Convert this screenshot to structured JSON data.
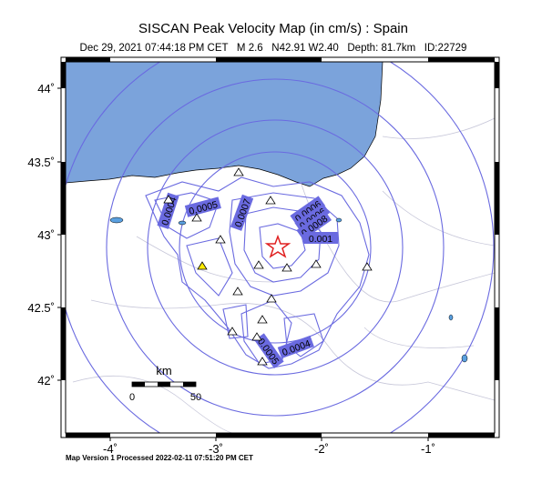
{
  "header": {
    "title": "SISCAN Peak Velocity Map (in cm/s) : Spain",
    "subtitle": "Dec 29, 2021 07:44:18 PM CET   M 2.6   N42.91 W2.40   Depth: 81.7km   ID:22729"
  },
  "map": {
    "lat_labels": [
      "44˚",
      "43.5˚",
      "43˚",
      "42.5˚",
      "42˚"
    ],
    "lon_labels": [
      "-4˚",
      "-3˚",
      "-2˚",
      "-1˚"
    ],
    "contour_labels": [
      "0.0004",
      "0.0005",
      "0.0007",
      "0.0006",
      "0.0006",
      "0.0008",
      "0.001",
      "0.0005",
      "0.0004"
    ],
    "scale": {
      "unit": "km",
      "start": "0",
      "end": "50"
    }
  },
  "footer": "Map Version 1 Processed 2022-02-11 07:51:20 PM CET"
}
